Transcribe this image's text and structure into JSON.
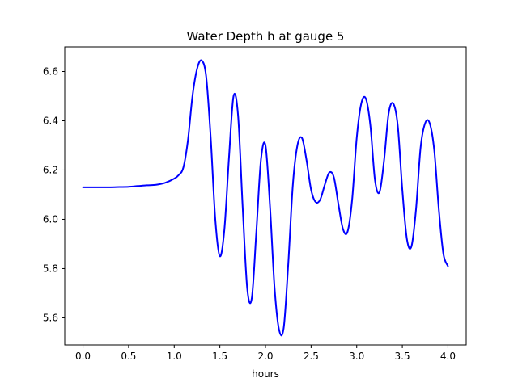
{
  "chart_data": {
    "type": "line",
    "title": "Water Depth h at gauge 5",
    "xlabel": "hours",
    "ylabel": "",
    "xlim": [
      -0.2,
      4.2
    ],
    "ylim": [
      5.49,
      6.7
    ],
    "xticks": [
      0.0,
      0.5,
      1.0,
      1.5,
      2.0,
      2.5,
      3.0,
      3.5,
      4.0
    ],
    "xtick_labels": [
      "0.0",
      "0.5",
      "1.0",
      "1.5",
      "2.0",
      "2.5",
      "3.0",
      "3.5",
      "4.0"
    ],
    "yticks": [
      5.6,
      5.8,
      6.0,
      6.2,
      6.4,
      6.6
    ],
    "ytick_labels": [
      "5.6",
      "5.8",
      "6.0",
      "6.2",
      "6.4",
      "6.6"
    ],
    "grid": false,
    "series": [
      {
        "color": "#0000ff",
        "x": [
          0.0,
          0.1,
          0.2,
          0.3,
          0.4,
          0.5,
          0.6,
          0.7,
          0.8,
          0.9,
          1.0,
          1.05,
          1.1,
          1.15,
          1.2,
          1.25,
          1.3,
          1.35,
          1.4,
          1.45,
          1.5,
          1.55,
          1.6,
          1.65,
          1.7,
          1.75,
          1.8,
          1.85,
          1.9,
          1.95,
          2.0,
          2.05,
          2.1,
          2.15,
          2.2,
          2.25,
          2.3,
          2.35,
          2.4,
          2.45,
          2.5,
          2.55,
          2.6,
          2.65,
          2.7,
          2.75,
          2.8,
          2.85,
          2.9,
          2.95,
          3.0,
          3.05,
          3.1,
          3.15,
          3.2,
          3.25,
          3.3,
          3.35,
          3.4,
          3.45,
          3.5,
          3.55,
          3.6,
          3.65,
          3.7,
          3.75,
          3.8,
          3.85,
          3.9,
          3.95,
          4.0
        ],
        "y": [
          6.13,
          6.13,
          6.13,
          6.13,
          6.131,
          6.132,
          6.135,
          6.138,
          6.14,
          6.148,
          6.165,
          6.18,
          6.21,
          6.32,
          6.5,
          6.61,
          6.645,
          6.58,
          6.33,
          6.0,
          5.85,
          5.96,
          6.25,
          6.5,
          6.42,
          6.05,
          5.72,
          5.68,
          5.95,
          6.24,
          6.3,
          6.05,
          5.72,
          5.55,
          5.56,
          5.82,
          6.14,
          6.3,
          6.33,
          6.24,
          6.12,
          6.07,
          6.08,
          6.14,
          6.19,
          6.17,
          6.06,
          5.96,
          5.95,
          6.08,
          6.33,
          6.47,
          6.49,
          6.38,
          6.16,
          6.11,
          6.24,
          6.43,
          6.47,
          6.38,
          6.12,
          5.92,
          5.89,
          6.04,
          6.29,
          6.39,
          6.39,
          6.28,
          6.04,
          5.86,
          5.81
        ]
      }
    ]
  }
}
